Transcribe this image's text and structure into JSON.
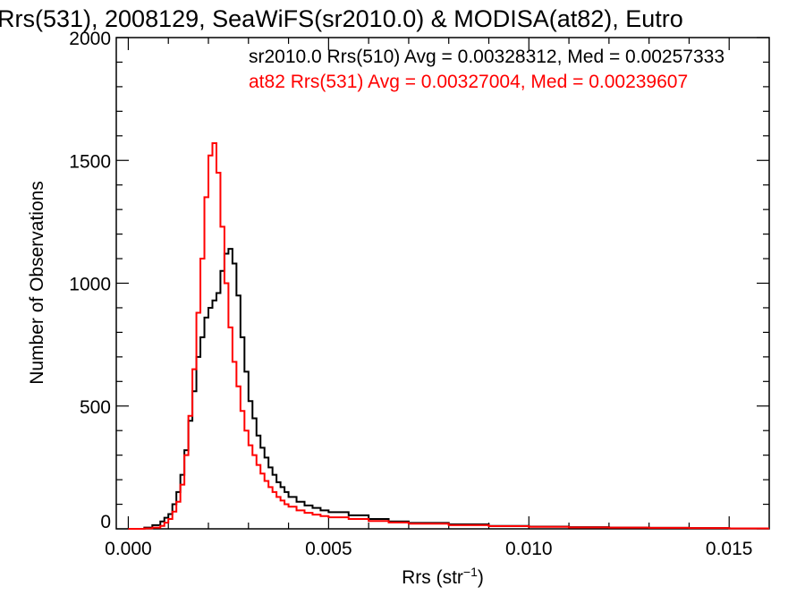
{
  "chart_data": {
    "type": "line",
    "title": "Rrs(531), 2008129, SeaWiFS(sr2010.0) & MODISA(at82), Eutro",
    "xlabel": "Rrs (str",
    "xlabel_sup": "−1",
    "xlabel_end": ")",
    "ylabel": "Number of Observations",
    "xlim": [
      -0.0003,
      0.016
    ],
    "ylim": [
      0,
      2000
    ],
    "xticks": [
      0.0,
      0.005,
      0.01,
      0.015
    ],
    "xtick_labels": [
      "0.000",
      "0.005",
      "0.010",
      "0.015"
    ],
    "yticks": [
      0,
      500,
      1000,
      1500,
      2000
    ],
    "ytick_labels": [
      "0",
      "500",
      "1000",
      "1500",
      "2000"
    ],
    "grid": false,
    "legend_position": "top-right",
    "series": [
      {
        "name": "sr2010.0 Rrs(510) Avg = 0.00328312, Med = 0.00257333",
        "color": "#000000",
        "x": [
          0.0,
          0.0004,
          0.0006,
          0.0008,
          0.0009,
          0.001,
          0.0011,
          0.0012,
          0.0013,
          0.0014,
          0.0015,
          0.0016,
          0.0017,
          0.0018,
          0.0019,
          0.002,
          0.0021,
          0.0022,
          0.0023,
          0.0024,
          0.0025,
          0.0026,
          0.0027,
          0.0028,
          0.0029,
          0.003,
          0.0031,
          0.0032,
          0.0033,
          0.0034,
          0.0035,
          0.0036,
          0.0037,
          0.0038,
          0.0039,
          0.004,
          0.0042,
          0.0044,
          0.0046,
          0.0048,
          0.005,
          0.0055,
          0.006,
          0.0065,
          0.007,
          0.008,
          0.009,
          0.01,
          0.011,
          0.012,
          0.013,
          0.014,
          0.015,
          0.016
        ],
        "values": [
          0,
          5,
          15,
          30,
          45,
          60,
          100,
          150,
          220,
          320,
          440,
          560,
          700,
          780,
          860,
          900,
          930,
          960,
          1050,
          1120,
          1140,
          1080,
          950,
          780,
          640,
          520,
          450,
          380,
          330,
          290,
          250,
          220,
          190,
          170,
          150,
          130,
          110,
          95,
          85,
          75,
          68,
          55,
          40,
          30,
          24,
          18,
          12,
          9,
          7,
          5,
          4,
          3,
          2,
          2
        ]
      },
      {
        "name": "at82 Rrs(531) Avg = 0.00327004, Med = 0.00239607",
        "color": "#ff0000",
        "x": [
          0.0,
          0.0004,
          0.0006,
          0.0008,
          0.0009,
          0.001,
          0.0011,
          0.0012,
          0.0013,
          0.0014,
          0.0015,
          0.0016,
          0.0017,
          0.0018,
          0.0019,
          0.002,
          0.0021,
          0.0022,
          0.0023,
          0.0024,
          0.0025,
          0.0026,
          0.0027,
          0.0028,
          0.0029,
          0.003,
          0.0031,
          0.0032,
          0.0033,
          0.0034,
          0.0035,
          0.0036,
          0.0037,
          0.0038,
          0.0039,
          0.004,
          0.0042,
          0.0044,
          0.0046,
          0.0048,
          0.005,
          0.0055,
          0.006,
          0.0065,
          0.007,
          0.008,
          0.009,
          0.01,
          0.011,
          0.012,
          0.013,
          0.014,
          0.015,
          0.016
        ],
        "values": [
          0,
          2,
          5,
          12,
          25,
          40,
          70,
          110,
          180,
          300,
          460,
          650,
          880,
          1100,
          1350,
          1520,
          1570,
          1450,
          1230,
          1000,
          820,
          680,
          580,
          480,
          400,
          340,
          300,
          260,
          225,
          195,
          170,
          150,
          130,
          115,
          100,
          90,
          75,
          65,
          58,
          52,
          47,
          40,
          32,
          26,
          21,
          15,
          11,
          8,
          6,
          5,
          4,
          3,
          2,
          2
        ]
      }
    ]
  }
}
